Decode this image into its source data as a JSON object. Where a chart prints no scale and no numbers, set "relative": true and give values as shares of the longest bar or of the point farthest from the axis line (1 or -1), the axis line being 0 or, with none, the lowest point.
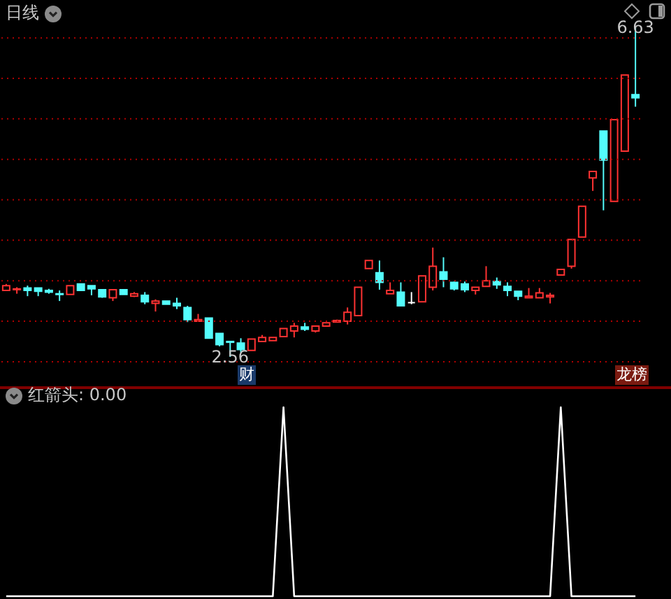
{
  "chart_data": [
    {
      "type": "candlestick",
      "title": "日线",
      "categories": [
        null,
        null,
        null,
        null,
        null,
        null,
        null,
        null,
        null,
        null,
        null,
        null,
        null,
        null,
        null,
        null,
        null,
        null,
        null,
        null,
        null,
        null,
        null,
        null,
        null,
        null,
        null,
        null,
        null,
        null,
        null,
        null,
        null,
        null,
        null,
        null,
        null,
        null,
        null,
        null,
        null,
        null,
        null,
        null,
        null,
        null,
        null,
        null,
        null,
        null,
        null,
        null,
        null,
        null,
        null,
        null,
        null,
        null,
        null,
        null
      ],
      "ohlc": [
        [
          3.38,
          3.46,
          3.38,
          3.44
        ],
        [
          3.39,
          3.42,
          3.34,
          3.4
        ],
        [
          3.41,
          3.44,
          3.31,
          3.38
        ],
        [
          3.41,
          3.41,
          3.31,
          3.37
        ],
        [
          3.38,
          3.4,
          3.34,
          3.36
        ],
        [
          3.34,
          3.38,
          3.25,
          3.33
        ],
        [
          3.33,
          3.44,
          3.33,
          3.44
        ],
        [
          3.46,
          3.46,
          3.38,
          3.38
        ],
        [
          3.44,
          3.44,
          3.32,
          3.4
        ],
        [
          3.39,
          3.39,
          3.29,
          3.3
        ],
        [
          3.29,
          3.39,
          3.25,
          3.39
        ],
        [
          3.39,
          3.39,
          3.33,
          3.33
        ],
        [
          3.31,
          3.36,
          3.3,
          3.34
        ],
        [
          3.32,
          3.36,
          3.21,
          3.24
        ],
        [
          3.22,
          3.27,
          3.12,
          3.25
        ],
        [
          3.25,
          3.25,
          3.21,
          3.21
        ],
        [
          3.22,
          3.29,
          3.15,
          3.19
        ],
        [
          3.17,
          3.19,
          2.99,
          3.02
        ],
        [
          3.0,
          3.09,
          3.0,
          3.02
        ],
        [
          3.04,
          3.04,
          2.79,
          2.79
        ],
        [
          2.85,
          2.85,
          2.69,
          2.71
        ],
        [
          2.75,
          2.75,
          2.56,
          2.74
        ],
        [
          2.73,
          2.79,
          2.61,
          2.65
        ],
        [
          2.64,
          2.78,
          2.64,
          2.78
        ],
        [
          2.75,
          2.83,
          2.75,
          2.8
        ],
        [
          2.76,
          2.8,
          2.76,
          2.8
        ],
        [
          2.81,
          2.91,
          2.81,
          2.91
        ],
        [
          2.88,
          2.98,
          2.8,
          2.94
        ],
        [
          2.93,
          2.98,
          2.88,
          2.9
        ],
        [
          2.88,
          2.94,
          2.86,
          2.94
        ],
        [
          2.94,
          2.98,
          2.94,
          2.98
        ],
        [
          2.99,
          3.02,
          2.99,
          3.01
        ],
        [
          3.0,
          3.17,
          2.96,
          3.11
        ],
        [
          3.07,
          3.42,
          3.07,
          3.42
        ],
        [
          3.65,
          3.75,
          3.65,
          3.75
        ],
        [
          3.6,
          3.75,
          3.39,
          3.48
        ],
        [
          3.34,
          3.48,
          3.34,
          3.38
        ],
        [
          3.36,
          3.48,
          3.19,
          3.19
        ],
        [
          3.23,
          3.36,
          3.21,
          3.23
        ],
        [
          3.24,
          3.56,
          3.24,
          3.56
        ],
        [
          3.42,
          3.91,
          3.38,
          3.68
        ],
        [
          3.61,
          3.79,
          3.42,
          3.52
        ],
        [
          3.48,
          3.49,
          3.38,
          3.4
        ],
        [
          3.46,
          3.49,
          3.36,
          3.39
        ],
        [
          3.38,
          3.42,
          3.33,
          3.42
        ],
        [
          3.43,
          3.68,
          3.43,
          3.5
        ],
        [
          3.49,
          3.54,
          3.4,
          3.45
        ],
        [
          3.43,
          3.48,
          3.31,
          3.38
        ],
        [
          3.37,
          3.37,
          3.26,
          3.31
        ],
        [
          3.29,
          3.41,
          3.29,
          3.31
        ],
        [
          3.29,
          3.41,
          3.29,
          3.35
        ],
        [
          3.3,
          3.35,
          3.22,
          3.32
        ],
        [
          3.57,
          3.64,
          3.57,
          3.64
        ],
        [
          3.68,
          4.01,
          3.65,
          4.01
        ],
        [
          4.04,
          4.42,
          4.04,
          4.42
        ],
        [
          4.77,
          4.85,
          4.61,
          4.85
        ],
        [
          5.35,
          5.35,
          4.37,
          4.99
        ],
        [
          4.48,
          5.49,
          4.48,
          5.49
        ],
        [
          5.1,
          6.04,
          5.1,
          6.04
        ],
        [
          5.8,
          6.63,
          5.65,
          5.76
        ]
      ],
      "colors": [
        "#ff3232",
        "#ff3232",
        "#54fcfc",
        "#54fcfc",
        "#54fcfc",
        "#54fcfc",
        "#ff3232",
        "#54fcfc",
        "#54fcfc",
        "#54fcfc",
        "#ff3232",
        "#54fcfc",
        "#ff3232",
        "#54fcfc",
        "#ff3232",
        "#54fcfc",
        "#54fcfc",
        "#54fcfc",
        "#ff3232",
        "#54fcfc",
        "#54fcfc",
        "#54fcfc",
        "#54fcfc",
        "#ff3232",
        "#ff3232",
        "#ff3232",
        "#ff3232",
        "#ff3232",
        "#54fcfc",
        "#ff3232",
        "#ff3232",
        "#ff3232",
        "#ff3232",
        "#ff3232",
        "#ff3232",
        "#54fcfc",
        "#ff3232",
        "#54fcfc",
        "#ffffff",
        "#ff3232",
        "#ff3232",
        "#54fcfc",
        "#54fcfc",
        "#54fcfc",
        "#ff3232",
        "#ff3232",
        "#54fcfc",
        "#54fcfc",
        "#54fcfc",
        "#ff3232",
        "#ff3232",
        "#ff3232",
        "#ff3232",
        "#ff3232",
        "#ff3232",
        "#ff3232",
        "#54fcfc",
        "#ff3232",
        "#ff3232",
        "#54fcfc"
      ],
      "yticks": [
        {
          "value": 2.5,
          "label": null
        },
        {
          "value": 3.0,
          "label": null
        },
        {
          "value": 3.5,
          "label": null
        },
        {
          "value": 4.0,
          "label": null
        },
        {
          "value": 4.5,
          "label": null
        },
        {
          "value": 5.0,
          "label": null
        },
        {
          "value": 5.5,
          "label": null
        },
        {
          "value": 6.0,
          "label": null
        },
        {
          "value": 6.5,
          "label": null
        }
      ],
      "grid": "y",
      "tick_labels": false,
      "annotations": [
        {
          "text": "6.63",
          "y": 6.63
        },
        {
          "text": "2.56",
          "y": 2.56
        },
        "财",
        "龙榜"
      ]
    },
    {
      "type": "line",
      "title": "红箭头: 0.00",
      "relative": true,
      "categories": [
        null,
        null,
        null,
        null,
        null,
        null,
        null,
        null,
        null,
        null,
        null,
        null,
        null,
        null,
        null,
        null,
        null,
        null,
        null,
        null,
        null,
        null,
        null,
        null,
        null,
        null,
        null,
        null,
        null,
        null,
        null,
        null,
        null,
        null,
        null,
        null,
        null,
        null,
        null,
        null,
        null,
        null,
        null,
        null,
        null,
        null,
        null,
        null,
        null,
        null,
        null,
        null,
        null,
        null,
        null,
        null,
        null,
        null,
        null,
        null
      ],
      "series": [
        {
          "color": "#ffffff",
          "values": [
            0,
            0,
            0,
            0,
            0,
            0,
            0,
            0,
            0,
            0,
            0,
            0,
            0,
            0,
            0,
            0,
            0,
            0,
            0,
            0,
            0,
            0,
            0,
            0,
            0,
            0,
            1,
            0,
            0,
            0,
            0,
            0,
            0,
            0,
            0,
            0,
            0,
            0,
            0,
            0,
            0,
            0,
            0,
            0,
            0,
            0,
            0,
            0,
            0,
            0,
            0,
            0,
            1,
            0,
            0,
            0,
            0,
            0,
            0,
            0
          ]
        }
      ],
      "tick_labels": false
    }
  ]
}
